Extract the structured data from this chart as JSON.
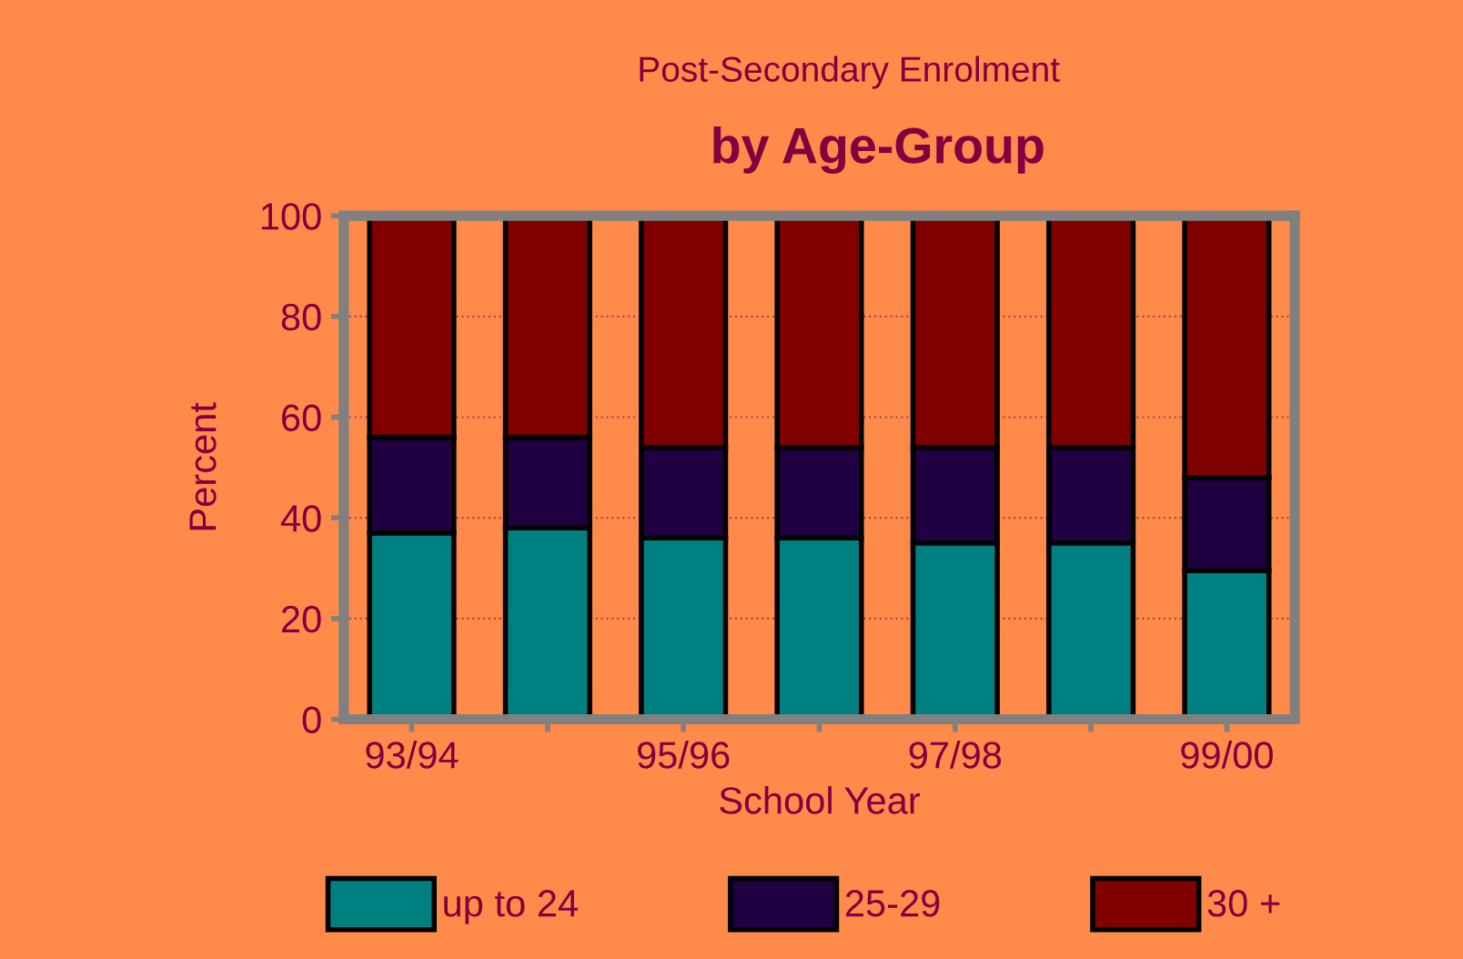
{
  "chart_data": {
    "type": "bar",
    "stacked": true,
    "subtitle": "Post-Secondary Enrolment",
    "title": "by Age-Group",
    "xlabel": "School Year",
    "ylabel": "Percent",
    "categories": [
      "93/94",
      null,
      "95/96",
      null,
      "97/98",
      null,
      "99/00"
    ],
    "series": [
      {
        "name": "up to 24",
        "color": "#008080",
        "values": [
          37,
          38,
          36,
          36,
          35,
          35,
          29.5
        ]
      },
      {
        "name": "25-29",
        "color": "#200040",
        "values": [
          19,
          18,
          18,
          18,
          19,
          19,
          18.5
        ]
      },
      {
        "name": "30 +",
        "color": "#800000",
        "values": [
          44,
          44,
          46,
          46,
          46,
          46,
          52
        ]
      }
    ],
    "ylim": [
      0,
      100
    ],
    "yticks": [
      0,
      20,
      40,
      60,
      80,
      100
    ],
    "grid": "y",
    "legend": "bottom"
  }
}
